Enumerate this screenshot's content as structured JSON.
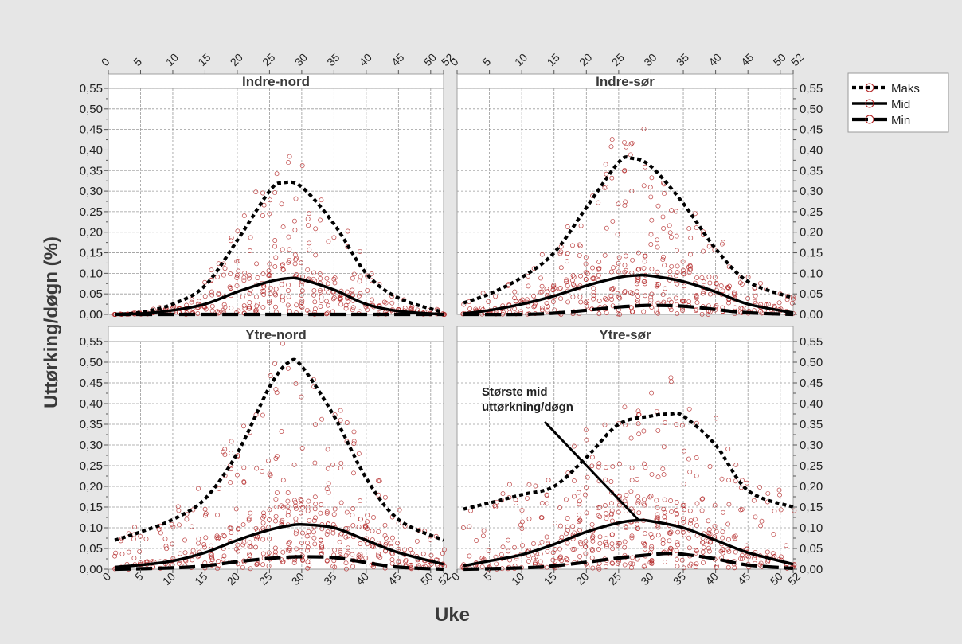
{
  "chart_data": {
    "type": "scatter",
    "ylabel": "Uttørking/døgn (%)",
    "xlabel": "Uke",
    "x_ticks": [
      0,
      5,
      10,
      15,
      20,
      25,
      30,
      35,
      40,
      45,
      50,
      52
    ],
    "y_ticks": [
      "0,00",
      "0,05",
      "0,10",
      "0,15",
      "0,20",
      "0,25",
      "0,30",
      "0,35",
      "0,40",
      "0,45",
      "0,50",
      "0,55"
    ],
    "xlim": [
      0,
      52
    ],
    "ylim": [
      0,
      0.55
    ],
    "grid": true,
    "legend_position": "top-right",
    "legend": [
      {
        "name": "Maks",
        "style": "dotted"
      },
      {
        "name": "Mid",
        "style": "solid"
      },
      {
        "name": "Min",
        "style": "dashed"
      }
    ],
    "colors": {
      "points": "#b22222",
      "lines": "#000000",
      "strip": "#ffffff",
      "background": "#e6e6e6"
    },
    "panels": [
      {
        "title": "Indre-nord",
        "maks": {
          "x": [
            1,
            5,
            10,
            15,
            20,
            25,
            27,
            30,
            35,
            40,
            45,
            52
          ],
          "y": [
            0.0,
            0.005,
            0.025,
            0.07,
            0.18,
            0.3,
            0.32,
            0.31,
            0.22,
            0.1,
            0.04,
            0.005
          ]
        },
        "mid": {
          "x": [
            1,
            5,
            10,
            15,
            20,
            25,
            28,
            30,
            35,
            40,
            45,
            52
          ],
          "y": [
            0.0,
            0.002,
            0.01,
            0.025,
            0.055,
            0.08,
            0.088,
            0.085,
            0.06,
            0.025,
            0.008,
            0.0
          ]
        },
        "min": {
          "x": [
            1,
            10,
            20,
            30,
            40,
            52
          ],
          "y": [
            0.0,
            0.0,
            0.0,
            0.0,
            0.0,
            0.0
          ]
        }
      },
      {
        "title": "Indre-sør",
        "maks": {
          "x": [
            1,
            5,
            10,
            15,
            20,
            25,
            27,
            30,
            35,
            40,
            45,
            52
          ],
          "y": [
            0.028,
            0.05,
            0.09,
            0.15,
            0.26,
            0.37,
            0.38,
            0.36,
            0.27,
            0.16,
            0.08,
            0.04
          ]
        },
        "mid": {
          "x": [
            1,
            5,
            10,
            15,
            20,
            25,
            28,
            30,
            35,
            40,
            45,
            52
          ],
          "y": [
            0.002,
            0.01,
            0.025,
            0.045,
            0.07,
            0.09,
            0.095,
            0.094,
            0.08,
            0.055,
            0.025,
            0.004
          ]
        },
        "min": {
          "x": [
            1,
            10,
            15,
            20,
            25,
            28,
            30,
            35,
            40,
            45,
            52
          ],
          "y": [
            0.0,
            0.0,
            0.003,
            0.01,
            0.018,
            0.021,
            0.022,
            0.02,
            0.012,
            0.004,
            0.0
          ]
        }
      },
      {
        "title": "Ytre-nord",
        "maks": {
          "x": [
            1,
            5,
            10,
            15,
            20,
            25,
            28,
            30,
            35,
            40,
            45,
            52
          ],
          "y": [
            0.07,
            0.09,
            0.12,
            0.17,
            0.28,
            0.44,
            0.5,
            0.49,
            0.37,
            0.22,
            0.12,
            0.07
          ]
        },
        "mid": {
          "x": [
            1,
            5,
            10,
            15,
            20,
            25,
            28,
            30,
            35,
            40,
            45,
            52
          ],
          "y": [
            0.005,
            0.01,
            0.02,
            0.04,
            0.07,
            0.095,
            0.105,
            0.108,
            0.1,
            0.07,
            0.04,
            0.012
          ]
        },
        "min": {
          "x": [
            1,
            10,
            15,
            20,
            25,
            28,
            30,
            35,
            40,
            45,
            52
          ],
          "y": [
            0.0,
            0.003,
            0.008,
            0.018,
            0.026,
            0.029,
            0.03,
            0.028,
            0.016,
            0.005,
            0.0
          ]
        }
      },
      {
        "title": "Ytre-sør",
        "maks": {
          "x": [
            1,
            5,
            10,
            15,
            20,
            25,
            30,
            33,
            35,
            40,
            45,
            52
          ],
          "y": [
            0.145,
            0.16,
            0.18,
            0.2,
            0.27,
            0.35,
            0.37,
            0.375,
            0.37,
            0.3,
            0.19,
            0.15
          ]
        },
        "mid": {
          "x": [
            1,
            5,
            10,
            15,
            20,
            25,
            28,
            30,
            35,
            40,
            45,
            52
          ],
          "y": [
            0.008,
            0.02,
            0.035,
            0.06,
            0.09,
            0.112,
            0.118,
            0.116,
            0.1,
            0.07,
            0.04,
            0.012
          ]
        },
        "min": {
          "x": [
            1,
            10,
            15,
            20,
            25,
            30,
            33,
            35,
            40,
            45,
            52
          ],
          "y": [
            0.0,
            0.003,
            0.008,
            0.017,
            0.027,
            0.035,
            0.038,
            0.036,
            0.025,
            0.01,
            0.002
          ]
        },
        "annotation": {
          "text": [
            "Største mid",
            "uttørkning/døgn"
          ],
          "x": 28,
          "y": 0.12
        }
      }
    ]
  }
}
